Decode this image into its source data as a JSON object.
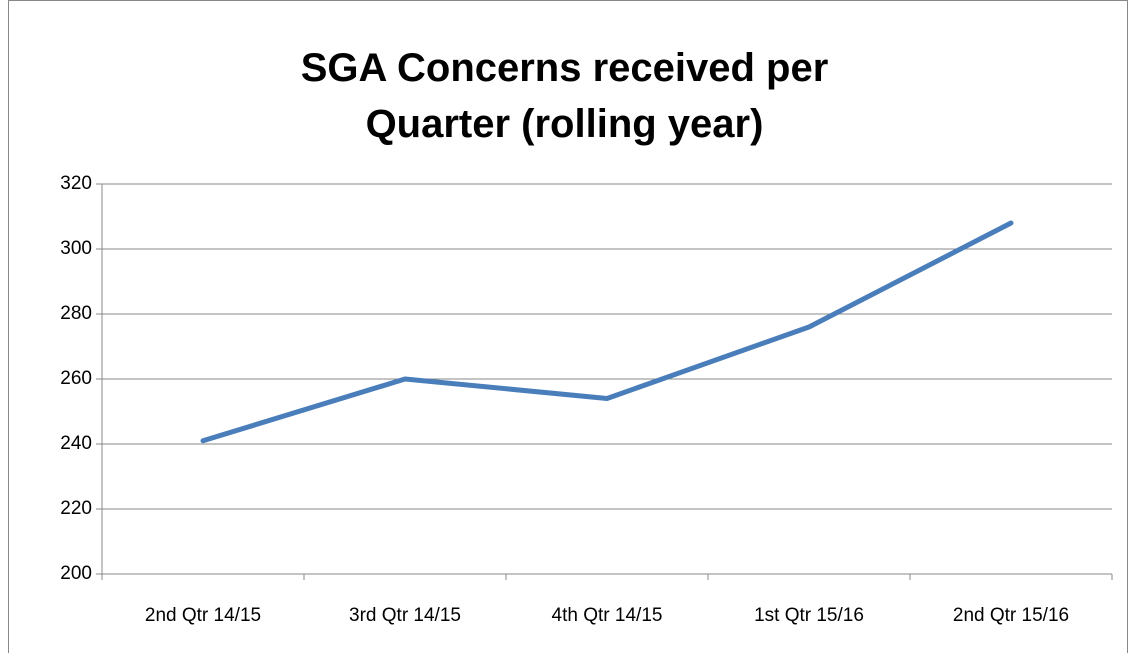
{
  "chart_data": {
    "type": "line",
    "title": "SGA Concerns received per Quarter (rolling year)",
    "categories": [
      "2nd Qtr 14/15",
      "3rd Qtr 14/15",
      "4th Qtr 14/15",
      "1st Qtr 15/16",
      "2nd Qtr 15/16"
    ],
    "series": [
      {
        "name": "SGA Concerns",
        "color": "#4a7ebb",
        "values": [
          241,
          260,
          254,
          276,
          308
        ]
      }
    ],
    "ylim": [
      200,
      320
    ],
    "yticks": [
      200,
      220,
      240,
      260,
      280,
      300,
      320
    ],
    "grid": true,
    "legend": false
  }
}
